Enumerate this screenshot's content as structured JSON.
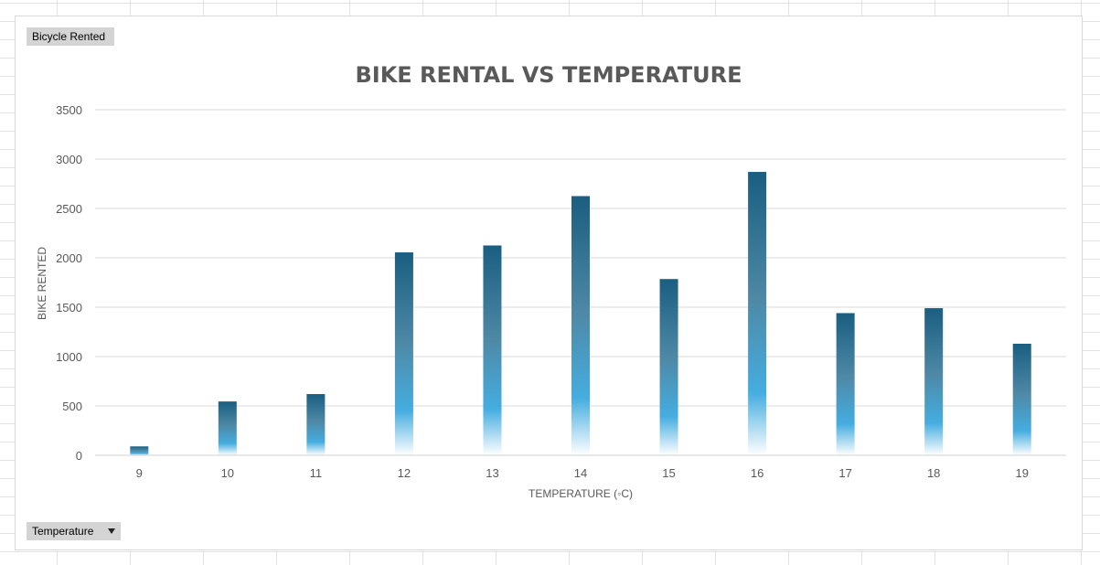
{
  "field_buttons": {
    "values_label": "Bicycle  Rented",
    "axis_label": "Temperature"
  },
  "icons": {
    "axis_dropdown": "dropdown-arrow-icon"
  },
  "colors": {
    "bar_top": "#1a5e80",
    "bar_mid": "#45ade0",
    "bar_bottom": "#ffffff"
  },
  "chart_data": {
    "type": "bar",
    "title": "BIKE RENTAL VS TEMPERATURE",
    "xlabel": "TEMPERATURE (◦C)",
    "ylabel": "BIKE RENTED",
    "categories": [
      "9",
      "10",
      "11",
      "12",
      "13",
      "14",
      "15",
      "16",
      "17",
      "18",
      "19"
    ],
    "values": [
      90,
      545,
      620,
      2055,
      2125,
      2625,
      1785,
      2870,
      1440,
      1490,
      1130
    ],
    "ylim": [
      0,
      3500
    ],
    "yticks": [
      "0",
      "500",
      "1000",
      "1500",
      "2000",
      "2500",
      "3000",
      "3500"
    ],
    "grid": true,
    "legend": "none"
  }
}
